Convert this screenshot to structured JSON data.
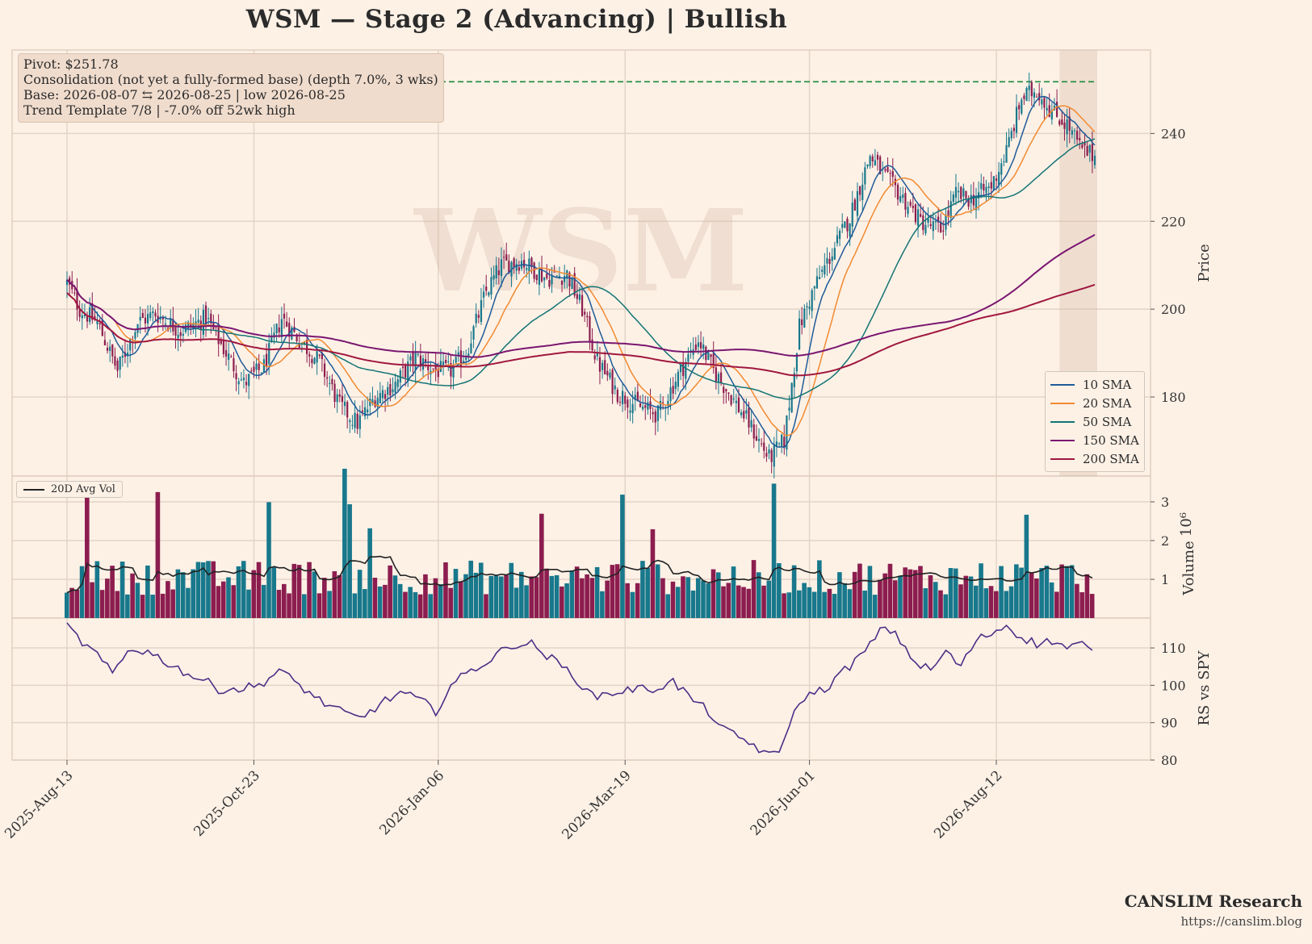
{
  "title": "WSM  —  Stage 2 (Advancing)  |  Bullish",
  "watermark": "WSM",
  "info": [
    "Pivot: $251.78",
    "Consolidation (not yet a fully-formed base)  (depth 7.0%, 3 wks)",
    "Base: 2026-08-07 ⇆ 2026-08-25  |  low 2026-08-25",
    "Trend Template 7/8  |  -7.0% off 52wk high"
  ],
  "brand": {
    "name": "CANSLIM Research",
    "url": "https://canslim.blog"
  },
  "colors": {
    "background": "#fdf1e6",
    "up": "#18788c",
    "down": "#8c1d4f",
    "sma10": "#1f5b99",
    "sma20": "#f28a30",
    "sma50": "#137474",
    "sma150": "#7a1670",
    "sma200": "#a0173f",
    "pivot": "#1a8a3a",
    "rs": "#4b2f86"
  },
  "chart_data": [
    {
      "type": "candlestick",
      "panel": "price",
      "ylabel": "Price",
      "ylim": [
        162,
        259
      ],
      "yticks": [
        180,
        200,
        220,
        240
      ],
      "x_ticks": [
        "2025-Aug-13",
        "2025-Oct-23",
        "2026-Jan-06",
        "2026-Mar-19",
        "2026-Jun-01",
        "2026-Aug-12"
      ],
      "n_bars": 262,
      "pivot": 251.78,
      "base_range": [
        "2026-08-07",
        "2026-08-25"
      ],
      "close_anchors": [
        [
          0,
          206
        ],
        [
          5,
          200
        ],
        [
          12,
          197
        ],
        [
          20,
          186
        ],
        [
          28,
          197
        ],
        [
          35,
          199
        ],
        [
          45,
          195
        ],
        [
          55,
          198
        ],
        [
          62,
          191
        ],
        [
          70,
          183
        ],
        [
          78,
          187
        ],
        [
          85,
          198
        ],
        [
          92,
          193
        ],
        [
          100,
          188
        ],
        [
          108,
          178
        ],
        [
          115,
          174
        ],
        [
          122,
          180
        ],
        [
          130,
          183
        ],
        [
          138,
          189
        ],
        [
          146,
          186
        ],
        [
          152,
          186
        ],
        [
          158,
          190
        ],
        [
          166,
          204
        ],
        [
          172,
          210
        ],
        [
          180,
          211
        ],
        [
          190,
          207
        ],
        [
          198,
          208
        ],
        [
          204,
          200
        ],
        [
          210,
          188
        ],
        [
          218,
          181
        ],
        [
          226,
          178
        ],
        [
          234,
          176
        ],
        [
          242,
          185
        ],
        [
          250,
          193
        ],
        [
          256,
          186
        ],
        [
          262,
          181
        ],
        [
          270,
          174
        ],
        [
          278,
          166
        ],
        [
          284,
          170
        ],
        [
          290,
          196
        ],
        [
          296,
          205
        ],
        [
          304,
          214
        ],
        [
          310,
          221
        ],
        [
          318,
          235
        ],
        [
          324,
          230
        ],
        [
          330,
          226
        ],
        [
          338,
          220
        ],
        [
          346,
          218
        ],
        [
          352,
          226
        ],
        [
          358,
          225
        ],
        [
          366,
          228
        ],
        [
          372,
          236
        ],
        [
          378,
          248
        ],
        [
          384,
          250
        ],
        [
          390,
          245
        ],
        [
          396,
          242
        ],
        [
          402,
          236
        ],
        [
          407,
          235
        ]
      ],
      "series": [
        {
          "name": "10 SMA"
        },
        {
          "name": "20 SMA"
        },
        {
          "name": "50 SMA"
        },
        {
          "name": "150 SMA"
        },
        {
          "name": "200 SMA"
        }
      ]
    },
    {
      "type": "bar",
      "panel": "volume",
      "ylabel": "Volume",
      "scale_label": "10⁶",
      "yticks": [
        1,
        2,
        3
      ],
      "series": [
        {
          "name": "20D Avg Vol"
        }
      ]
    },
    {
      "type": "line",
      "panel": "rs",
      "ylabel": "RS vs SPY",
      "ylim": [
        80,
        118
      ],
      "yticks": [
        80,
        90,
        100,
        110
      ],
      "anchors": [
        [
          0,
          116
        ],
        [
          5,
          112
        ],
        [
          12,
          108
        ],
        [
          18,
          103
        ],
        [
          25,
          110
        ],
        [
          32,
          109
        ],
        [
          40,
          106
        ],
        [
          48,
          103
        ],
        [
          55,
          101
        ],
        [
          60,
          99
        ],
        [
          68,
          99
        ],
        [
          76,
          100
        ],
        [
          84,
          104
        ],
        [
          92,
          100
        ],
        [
          100,
          96
        ],
        [
          108,
          93
        ],
        [
          116,
          91
        ],
        [
          124,
          95
        ],
        [
          132,
          98
        ],
        [
          140,
          96
        ],
        [
          146,
          93
        ],
        [
          152,
          100
        ],
        [
          160,
          104
        ],
        [
          168,
          107
        ],
        [
          176,
          111
        ],
        [
          184,
          111
        ],
        [
          192,
          107
        ],
        [
          200,
          103
        ],
        [
          208,
          97
        ],
        [
          216,
          98
        ],
        [
          224,
          99
        ],
        [
          232,
          99
        ],
        [
          240,
          101
        ],
        [
          248,
          96
        ],
        [
          254,
          93
        ],
        [
          260,
          88
        ],
        [
          266,
          86
        ],
        [
          272,
          84
        ],
        [
          278,
          81
        ],
        [
          282,
          82
        ],
        [
          286,
          90
        ],
        [
          292,
          97
        ],
        [
          300,
          99
        ],
        [
          308,
          104
        ],
        [
          316,
          109
        ],
        [
          324,
          116
        ],
        [
          330,
          112
        ],
        [
          336,
          106
        ],
        [
          342,
          104
        ],
        [
          348,
          109
        ],
        [
          354,
          105
        ],
        [
          360,
          112
        ],
        [
          366,
          114
        ],
        [
          372,
          116
        ],
        [
          378,
          113
        ],
        [
          384,
          111
        ],
        [
          390,
          112
        ],
        [
          396,
          110
        ],
        [
          402,
          111
        ],
        [
          407,
          108
        ]
      ]
    }
  ]
}
